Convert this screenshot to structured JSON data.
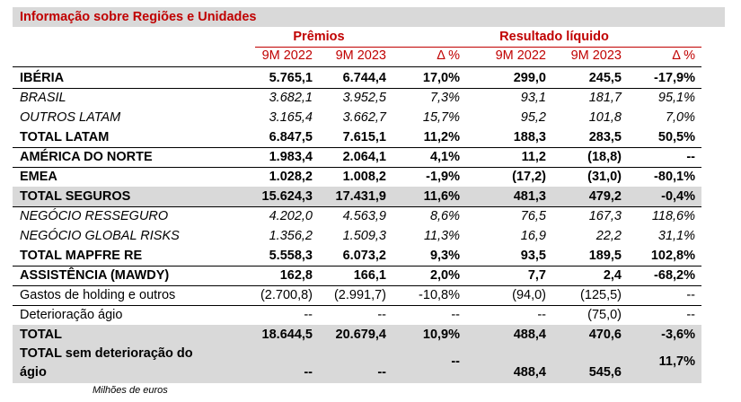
{
  "title": "Informação sobre Regiões e Unidades",
  "groups": {
    "premios": "Prêmios",
    "resultado": "Resultado líquido"
  },
  "columns": [
    "9M 2022",
    "9M 2023",
    "Δ %",
    "9M 2022",
    "9M 2023",
    "Δ %"
  ],
  "rows": [
    {
      "label": "IBÉRIA",
      "style": "bold",
      "values": [
        "5.765,1",
        "6.744,4",
        "17,0%",
        "299,0",
        "245,5",
        "-17,9%"
      ]
    },
    {
      "label": "BRASIL",
      "style": "italic",
      "values": [
        "3.682,1",
        "3.952,5",
        "7,3%",
        "93,1",
        "181,7",
        "95,1%"
      ]
    },
    {
      "label": "OUTROS LATAM",
      "style": "italic",
      "values": [
        "3.165,4",
        "3.662,7",
        "15,7%",
        "95,2",
        "101,8",
        "7,0%"
      ]
    },
    {
      "label": "TOTAL LATAM",
      "style": "bold",
      "values": [
        "6.847,5",
        "7.615,1",
        "11,2%",
        "188,3",
        "283,5",
        "50,5%"
      ]
    },
    {
      "label": "AMÉRICA DO NORTE",
      "style": "bold",
      "values": [
        "1.983,4",
        "2.064,1",
        "4,1%",
        "11,2",
        "(18,8)",
        "--"
      ]
    },
    {
      "label": "EMEA",
      "style": "bold",
      "values": [
        "1.028,2",
        "1.008,2",
        "-1,9%",
        "(17,2)",
        "(31,0)",
        "-80,1%"
      ]
    },
    {
      "label": "TOTAL SEGUROS",
      "style": "bold",
      "values": [
        "15.624,3",
        "17.431,9",
        "11,6%",
        "481,3",
        "479,2",
        "-0,4%"
      ]
    },
    {
      "label": "NEGÓCIO RESSEGURO",
      "style": "italic",
      "values": [
        "4.202,0",
        "4.563,9",
        "8,6%",
        "76,5",
        "167,3",
        "118,6%"
      ]
    },
    {
      "label": "NEGÓCIO GLOBAL RISKS",
      "style": "italic",
      "values": [
        "1.356,2",
        "1.509,3",
        "11,3%",
        "16,9",
        "22,2",
        "31,1%"
      ]
    },
    {
      "label": "TOTAL MAPFRE RE",
      "style": "bold",
      "values": [
        "5.558,3",
        "6.073,2",
        "9,3%",
        "93,5",
        "189,5",
        "102,8%"
      ]
    },
    {
      "label": "ASSISTÊNCIA (MAWDY)",
      "style": "bold",
      "values": [
        "162,8",
        "166,1",
        "2,0%",
        "7,7",
        "2,4",
        "-68,2%"
      ]
    },
    {
      "label": "Gastos de holding e outros",
      "style": "normal",
      "values": [
        "(2.700,8)",
        "(2.991,7)",
        "-10,8%",
        "(94,0)",
        "(125,5)",
        "--"
      ]
    },
    {
      "label": "Deterioração ágio",
      "style": "normal",
      "values": [
        "--",
        "--",
        "--",
        "--",
        "(75,0)",
        "--"
      ]
    },
    {
      "label": "TOTAL",
      "style": "bold",
      "values": [
        "18.644,5",
        "20.679,4",
        "10,9%",
        "488,4",
        "470,6",
        "-3,6%"
      ]
    }
  ],
  "last_row": {
    "label_line1": "TOTAL sem deterioração do",
    "label_line2": "ágio",
    "values": [
      "--",
      "--",
      "--",
      "488,4",
      "545,6",
      "11,7%"
    ]
  },
  "footnote": "Milhões de euros",
  "colors": {
    "accent": "#c00000",
    "header_bg": "#d9d9d9",
    "total_bg": "#d9d9d9"
  }
}
